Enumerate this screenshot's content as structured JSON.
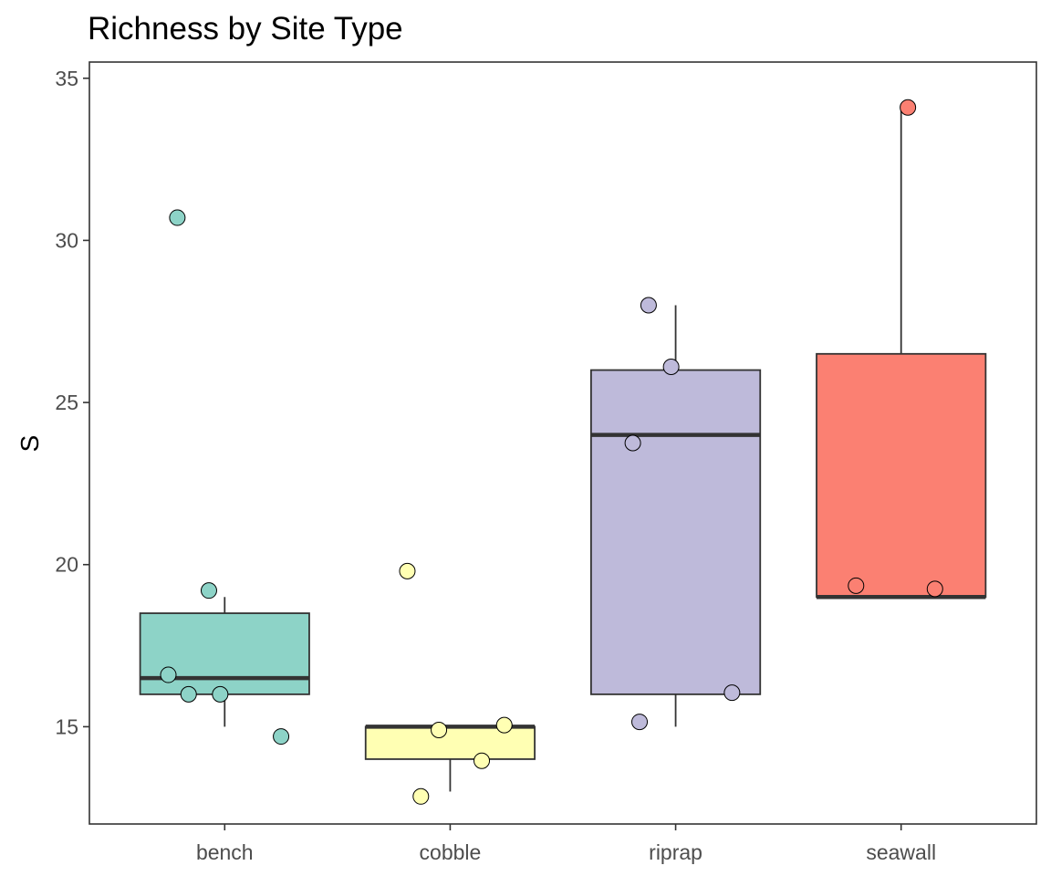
{
  "chart_data": {
    "type": "boxplot",
    "title": "Richness by Site Type",
    "xlabel": "",
    "ylabel": "S",
    "ylim": [
      12.0,
      35.5
    ],
    "yticks": [
      15,
      20,
      25,
      30,
      35
    ],
    "categories": [
      "bench",
      "cobble",
      "riprap",
      "seawall"
    ],
    "grid": false,
    "legend": "none",
    "boxes": [
      {
        "category": "bench",
        "q1": 16,
        "median": 16.5,
        "q3": 18.5,
        "whisker_low": 15,
        "whisker_high": 19,
        "color": "#8DD3C7"
      },
      {
        "category": "cobble",
        "q1": 14,
        "median": 15,
        "q3": 15,
        "whisker_low": 13,
        "whisker_high": 15,
        "color": "#FFFFB3"
      },
      {
        "category": "riprap",
        "q1": 16,
        "median": 24,
        "q3": 26,
        "whisker_low": 15,
        "whisker_high": 28,
        "color": "#BEBADA"
      },
      {
        "category": "seawall",
        "q1": 19,
        "median": 19,
        "q3": 26.5,
        "whisker_low": 19,
        "whisker_high": 34,
        "color": "#FB8072"
      }
    ],
    "points": [
      {
        "category": "bench",
        "jitter": -0.21,
        "y": 30.7
      },
      {
        "category": "bench",
        "jitter": -0.07,
        "y": 19.2
      },
      {
        "category": "bench",
        "jitter": -0.25,
        "y": 16.6
      },
      {
        "category": "bench",
        "jitter": -0.16,
        "y": 16.0
      },
      {
        "category": "bench",
        "jitter": -0.02,
        "y": 16.0
      },
      {
        "category": "bench",
        "jitter": 0.25,
        "y": 14.7
      },
      {
        "category": "cobble",
        "jitter": -0.19,
        "y": 19.8
      },
      {
        "category": "cobble",
        "jitter": -0.05,
        "y": 14.9
      },
      {
        "category": "cobble",
        "jitter": 0.24,
        "y": 15.05
      },
      {
        "category": "cobble",
        "jitter": 0.14,
        "y": 13.95
      },
      {
        "category": "cobble",
        "jitter": -0.13,
        "y": 12.85
      },
      {
        "category": "riprap",
        "jitter": -0.12,
        "y": 28.0
      },
      {
        "category": "riprap",
        "jitter": -0.02,
        "y": 26.1
      },
      {
        "category": "riprap",
        "jitter": -0.19,
        "y": 23.75
      },
      {
        "category": "riprap",
        "jitter": 0.25,
        "y": 16.05
      },
      {
        "category": "riprap",
        "jitter": -0.16,
        "y": 15.15
      },
      {
        "category": "seawall",
        "jitter": 0.03,
        "y": 34.1
      },
      {
        "category": "seawall",
        "jitter": -0.2,
        "y": 19.35
      },
      {
        "category": "seawall",
        "jitter": 0.15,
        "y": 19.25
      }
    ],
    "colors": {
      "box_line": "#333333",
      "median_line": "#333333",
      "panel_border": "#333333",
      "point_stroke": "#000000"
    }
  }
}
